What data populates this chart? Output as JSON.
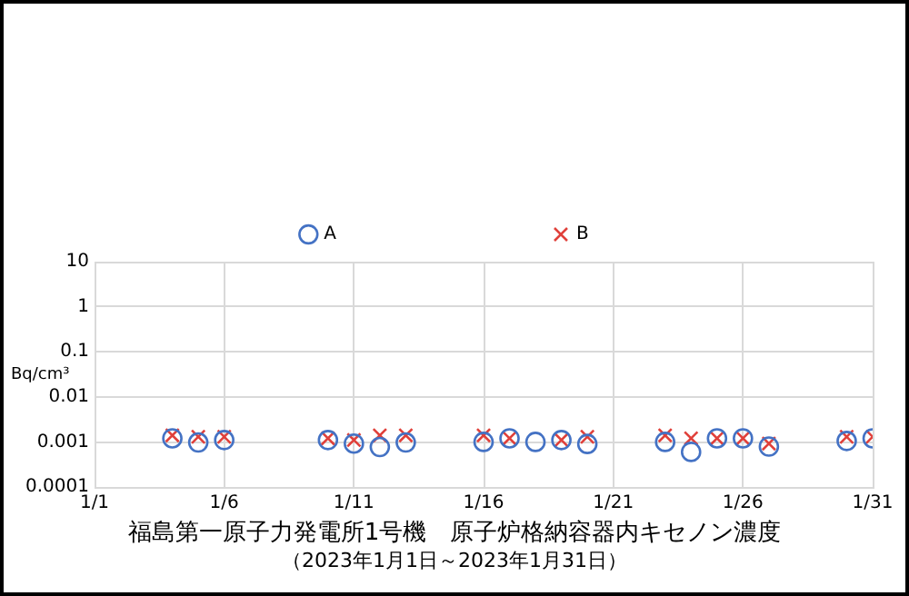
{
  "chart_data": {
    "type": "scatter",
    "title": "福島第一原子力発電所1号機　原子炉格納容器内キセノン濃度",
    "subtitle": "（2023年1月1日～2023年1月31日）",
    "ylabel": "Bq/cm³",
    "series": [
      {
        "name": "A",
        "color": "#4472c4",
        "marker": "circle",
        "x": [
          "--01-04",
          "--01-05",
          "--01-06",
          "--01-10",
          "--01-11",
          "--01-12",
          "--01-13",
          "--01-16",
          "--01-17",
          "--01-18",
          "--01-19",
          "--01-20",
          "--01-23",
          "--01-24",
          "--01-25",
          "--01-26",
          "--01-27",
          "--01-30",
          "--01-31"
        ],
        "values": [
          0.0012,
          0.00097,
          0.0011,
          0.0011,
          0.00092,
          0.00077,
          0.00097,
          0.001,
          0.0012,
          0.001,
          0.0011,
          0.0009,
          0.001,
          0.0006,
          0.0012,
          0.0012,
          0.00079,
          0.00105,
          0.0012
        ]
      },
      {
        "name": "B",
        "color": "#e0403a",
        "marker": "cross",
        "x": [
          "--01-04",
          "--01-05",
          "--01-06",
          "--01-10",
          "--01-11",
          "--01-12",
          "--01-13",
          "--01-16",
          "--01-17",
          "--01-19",
          "--01-20",
          "--01-23",
          "--01-24",
          "--01-25",
          "--01-26",
          "--01-27",
          "--01-30",
          "--01-31"
        ],
        "values": [
          0.0014,
          0.0013,
          0.0013,
          0.0012,
          0.0011,
          0.0014,
          0.0014,
          0.0014,
          0.0012,
          0.0011,
          0.0013,
          0.0014,
          0.0012,
          0.0012,
          0.0012,
          0.00092,
          0.0013,
          0.0013
        ]
      }
    ],
    "log": "y",
    "xlim": [
      "--01-01",
      "--01-31"
    ],
    "xticks": [
      {
        "value": "--01-01",
        "label": "1/1"
      },
      {
        "value": "--01-06",
        "label": "1/6"
      },
      {
        "value": "--01-11",
        "label": "1/11"
      },
      {
        "value": "--01-16",
        "label": "1/16"
      },
      {
        "value": "--01-21",
        "label": "1/21"
      },
      {
        "value": "--01-26",
        "label": "1/26"
      },
      {
        "value": "--01-31",
        "label": "1/31"
      }
    ],
    "ylim": [
      0.0001,
      10
    ],
    "yticks": [
      {
        "value": 0.0001,
        "label": "0.0001"
      },
      {
        "value": 0.001,
        "label": "0.001"
      },
      {
        "value": 0.01,
        "label": "0.01"
      },
      {
        "value": 0.1,
        "label": "0.1"
      },
      1,
      10
    ],
    "grid": true,
    "legend": "top"
  }
}
